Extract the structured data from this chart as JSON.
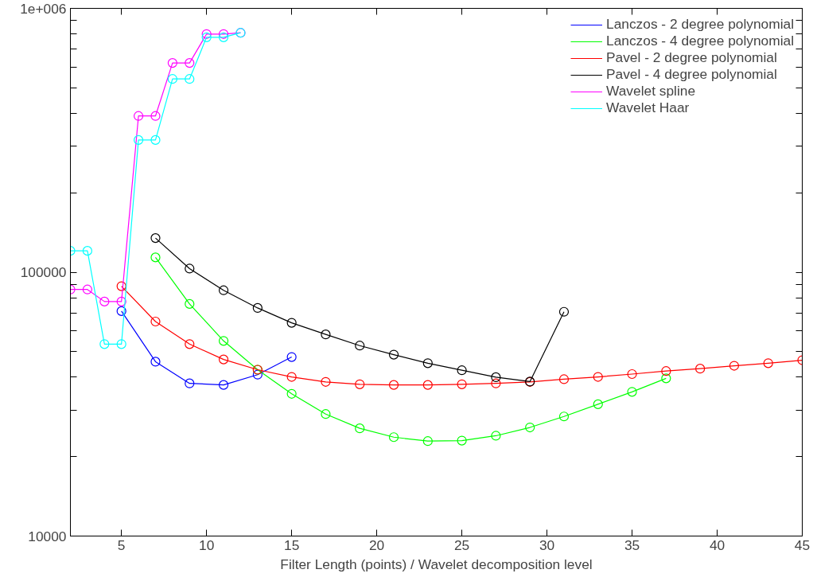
{
  "chart_data": {
    "type": "line",
    "xlabel": "Filter Length (points) / Wavelet decomposition level",
    "xlim": [
      2,
      45
    ],
    "xticks": [
      5,
      10,
      15,
      20,
      25,
      30,
      35,
      40,
      45
    ],
    "ylim": [
      10000,
      1000000
    ],
    "log": "y",
    "yticks": [
      10000,
      {
        "value": 20000,
        "label": null
      },
      {
        "value": 30000,
        "label": null
      },
      {
        "value": 40000,
        "label": null
      },
      {
        "value": 50000,
        "label": null
      },
      {
        "value": 60000,
        "label": null
      },
      {
        "value": 70000,
        "label": null
      },
      {
        "value": 80000,
        "label": null
      },
      {
        "value": 90000,
        "label": null
      },
      100000,
      {
        "value": 200000,
        "label": null
      },
      {
        "value": 300000,
        "label": null
      },
      {
        "value": 400000,
        "label": null
      },
      {
        "value": 500000,
        "label": null
      },
      {
        "value": 600000,
        "label": null
      },
      {
        "value": 700000,
        "label": null
      },
      {
        "value": 800000,
        "label": null
      },
      {
        "value": 900000,
        "label": null
      },
      {
        "value": 1000000,
        "label": "1e+006"
      }
    ],
    "grid": false,
    "legend": "top right",
    "marker": "circle",
    "line_style": "solid",
    "series": [
      {
        "name": "Lanczos - 2 degree polynomial",
        "color": "#0000ff",
        "x": [
          5,
          7,
          9,
          11,
          13,
          15
        ],
        "values": [
          71200,
          45800,
          37900,
          37400,
          40900,
          47700
        ]
      },
      {
        "name": "Lanczos - 4 degree polynomial",
        "color": "#00ff00",
        "x": [
          7,
          9,
          11,
          13,
          15,
          17,
          19,
          21,
          23,
          25,
          27,
          29,
          31,
          33,
          35,
          37
        ],
        "values": [
          113800,
          75800,
          54900,
          42700,
          34600,
          29000,
          25600,
          23700,
          22900,
          23000,
          24000,
          25800,
          28400,
          31600,
          35200,
          39600
        ]
      },
      {
        "name": "Pavel - 2 degree polynomial",
        "color": "#ff0000",
        "x": [
          5,
          7,
          9,
          11,
          13,
          15,
          17,
          19,
          21,
          23,
          25,
          27,
          29,
          31,
          33,
          35,
          37,
          39,
          41,
          43,
          45
        ],
        "values": [
          88500,
          65000,
          53400,
          46700,
          42700,
          40100,
          38400,
          37600,
          37400,
          37400,
          37600,
          37900,
          38400,
          39300,
          40100,
          41100,
          42200,
          43100,
          44200,
          45200,
          46400
        ]
      },
      {
        "name": "Pavel - 4 degree polynomial",
        "color": "#000000",
        "x": [
          7,
          9,
          11,
          13,
          15,
          17,
          19,
          21,
          23,
          25,
          27,
          29,
          31
        ],
        "values": [
          134700,
          103200,
          85400,
          73200,
          64300,
          58100,
          52700,
          48700,
          45200,
          42500,
          40000,
          38500,
          70800
        ]
      },
      {
        "name": "Wavelet spline",
        "color": "#ff00ff",
        "x": [
          2,
          3,
          4,
          5,
          6,
          7,
          8,
          9,
          10,
          11,
          12
        ],
        "values": [
          86000,
          86000,
          77400,
          77400,
          391000,
          391000,
          621000,
          621000,
          799000,
          799000,
          808000
        ]
      },
      {
        "name": "Wavelet Haar",
        "color": "#00ffff",
        "x": [
          2,
          3,
          4,
          5,
          6,
          7,
          8,
          9,
          10,
          11,
          12
        ],
        "values": [
          120500,
          120500,
          53400,
          53400,
          317000,
          317000,
          540000,
          540000,
          777000,
          777000,
          808000
        ]
      }
    ]
  }
}
